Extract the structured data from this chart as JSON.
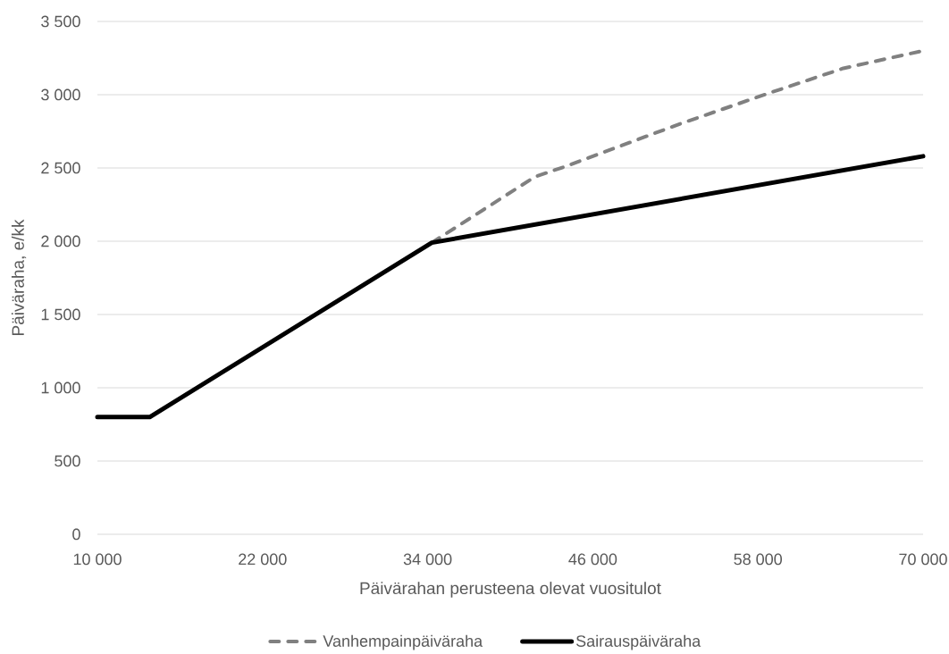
{
  "chart_data": {
    "type": "line",
    "xlabel": "Päivärahan perusteena olevat vuositulot",
    "ylabel": "Päiväraha, e/kk",
    "xlim": [
      10000,
      70000
    ],
    "xticks": [
      {
        "value": 10000,
        "label": "10 000"
      },
      {
        "value": 22000,
        "label": "22 000"
      },
      {
        "value": 34000,
        "label": "34 000"
      },
      {
        "value": 46000,
        "label": "46 000"
      },
      {
        "value": 58000,
        "label": "58 000"
      },
      {
        "value": 70000,
        "label": "70 000"
      }
    ],
    "ylim": [
      0,
      3500
    ],
    "yticks": [
      0,
      500,
      {
        "value": 1000,
        "label": "1 000"
      },
      {
        "value": 1500,
        "label": "1 500"
      },
      {
        "value": 2000,
        "label": "2 000"
      },
      {
        "value": 2500,
        "label": "2 500"
      },
      {
        "value": 3000,
        "label": "3 000"
      },
      {
        "value": 3500,
        "label": "3 500"
      }
    ],
    "series": [
      {
        "name": "Vanhempainpäiväraha",
        "color": "#808080",
        "line_style": "dashed",
        "x": [
          34300,
          41800,
          44000,
          52300,
          59100,
          64200,
          70000
        ],
        "values": [
          1990,
          2440,
          2510,
          2800,
          3020,
          3180,
          3300
        ]
      },
      {
        "name": "Sairauspäiväraha",
        "color": "#000000",
        "line_style": "solid",
        "x": [
          10000,
          13800,
          34300,
          70000
        ],
        "values": [
          800,
          800,
          1990,
          2580
        ]
      }
    ],
    "grid": "y",
    "legend": "bottom"
  }
}
